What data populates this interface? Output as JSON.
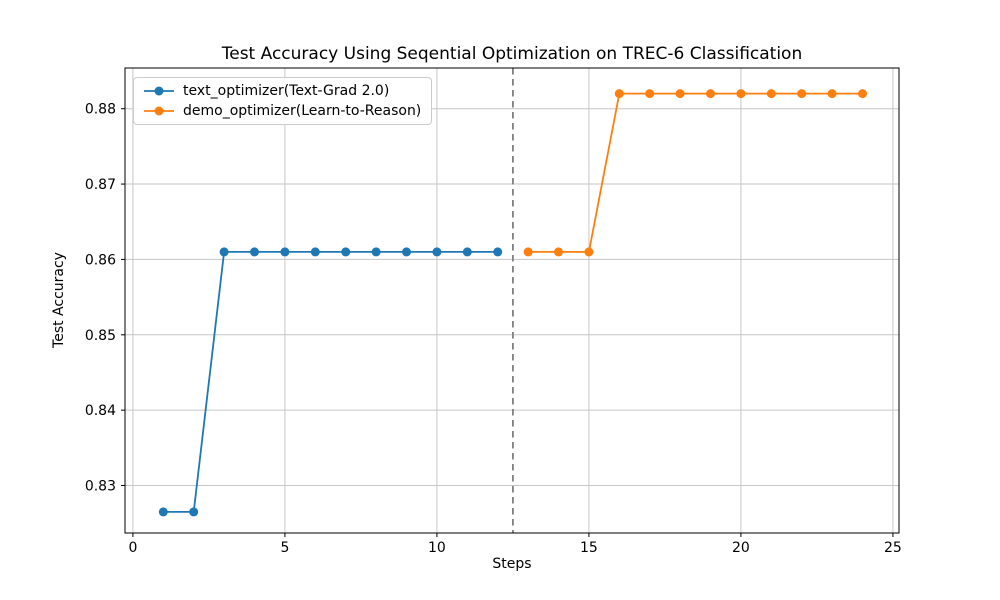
{
  "chart_data": {
    "type": "line",
    "title": "Test Accuracy Using Seqential Optimization on TREC-6 Classification",
    "xlabel": "Steps",
    "ylabel": "Test Accuracy",
    "xlim": [
      -0.26,
      25.2
    ],
    "ylim": [
      0.8237,
      0.8854
    ],
    "grid": true,
    "legend_position": "upper left",
    "xticks": {
      "values": [
        0,
        5,
        10,
        15,
        20,
        25
      ],
      "labels": [
        "0",
        "5",
        "10",
        "15",
        "20",
        "25"
      ]
    },
    "yticks": {
      "values": [
        0.83,
        0.84,
        0.85,
        0.86,
        0.87,
        0.88
      ],
      "labels": [
        "0.83",
        "0.84",
        "0.85",
        "0.86",
        "0.87",
        "0.88"
      ]
    },
    "series": [
      {
        "name": "text_optimizer(Text-Grad 2.0)",
        "color": "#1f77b4",
        "marker": "circle",
        "x": [
          1,
          2,
          3,
          4,
          5,
          6,
          7,
          8,
          9,
          10,
          11,
          12
        ],
        "y": [
          0.8265,
          0.8265,
          0.861,
          0.861,
          0.861,
          0.861,
          0.861,
          0.861,
          0.861,
          0.861,
          0.861,
          0.861
        ]
      },
      {
        "name": "demo_optimizer(Learn-to-Reason)",
        "color": "#ff7f0e",
        "marker": "circle",
        "x": [
          13,
          14,
          15,
          16,
          17,
          18,
          19,
          20,
          21,
          22,
          23,
          24
        ],
        "y": [
          0.861,
          0.861,
          0.861,
          0.882,
          0.882,
          0.882,
          0.882,
          0.882,
          0.882,
          0.882,
          0.882,
          0.882
        ]
      }
    ],
    "vline": {
      "x": 12.5,
      "color": "#808080",
      "style": "dashed"
    },
    "colors": {
      "grid": "#c6c6c6",
      "spine": "#000000",
      "tick_label": "#000000",
      "background": "#ffffff"
    }
  }
}
